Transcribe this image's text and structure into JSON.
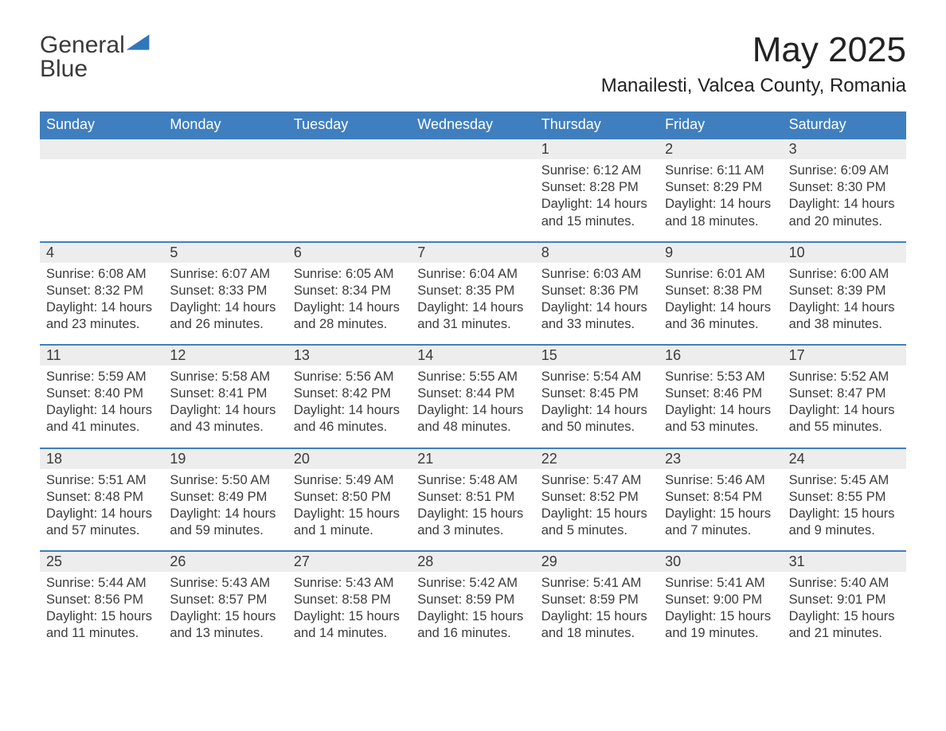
{
  "brand": {
    "name_part1": "General",
    "name_part2": "Blue",
    "text_color": "#3a3a3a",
    "accent_color": "#2f77bb"
  },
  "header": {
    "month_title": "May 2025",
    "location": "Manailesti, Valcea County, Romania",
    "title_fontsize": 44,
    "location_fontsize": 24
  },
  "styling": {
    "background_color": "#ffffff",
    "header_bar_color": "#3f7fbf",
    "header_bar_text_color": "#ffffff",
    "daynum_band_color": "#ededed",
    "week_divider_color": "#3f7fbf",
    "body_text_color": "#3c3c3c",
    "weekday_fontsize": 18,
    "daynum_fontsize": 18,
    "body_fontsize": 16.5,
    "columns": 7
  },
  "weekdays": [
    "Sunday",
    "Monday",
    "Tuesday",
    "Wednesday",
    "Thursday",
    "Friday",
    "Saturday"
  ],
  "weeks": [
    [
      {
        "day": "",
        "sunrise": "",
        "sunset": "",
        "daylight": ""
      },
      {
        "day": "",
        "sunrise": "",
        "sunset": "",
        "daylight": ""
      },
      {
        "day": "",
        "sunrise": "",
        "sunset": "",
        "daylight": ""
      },
      {
        "day": "",
        "sunrise": "",
        "sunset": "",
        "daylight": ""
      },
      {
        "day": "1",
        "sunrise": "Sunrise: 6:12 AM",
        "sunset": "Sunset: 8:28 PM",
        "daylight": "Daylight: 14 hours and 15 minutes."
      },
      {
        "day": "2",
        "sunrise": "Sunrise: 6:11 AM",
        "sunset": "Sunset: 8:29 PM",
        "daylight": "Daylight: 14 hours and 18 minutes."
      },
      {
        "day": "3",
        "sunrise": "Sunrise: 6:09 AM",
        "sunset": "Sunset: 8:30 PM",
        "daylight": "Daylight: 14 hours and 20 minutes."
      }
    ],
    [
      {
        "day": "4",
        "sunrise": "Sunrise: 6:08 AM",
        "sunset": "Sunset: 8:32 PM",
        "daylight": "Daylight: 14 hours and 23 minutes."
      },
      {
        "day": "5",
        "sunrise": "Sunrise: 6:07 AM",
        "sunset": "Sunset: 8:33 PM",
        "daylight": "Daylight: 14 hours and 26 minutes."
      },
      {
        "day": "6",
        "sunrise": "Sunrise: 6:05 AM",
        "sunset": "Sunset: 8:34 PM",
        "daylight": "Daylight: 14 hours and 28 minutes."
      },
      {
        "day": "7",
        "sunrise": "Sunrise: 6:04 AM",
        "sunset": "Sunset: 8:35 PM",
        "daylight": "Daylight: 14 hours and 31 minutes."
      },
      {
        "day": "8",
        "sunrise": "Sunrise: 6:03 AM",
        "sunset": "Sunset: 8:36 PM",
        "daylight": "Daylight: 14 hours and 33 minutes."
      },
      {
        "day": "9",
        "sunrise": "Sunrise: 6:01 AM",
        "sunset": "Sunset: 8:38 PM",
        "daylight": "Daylight: 14 hours and 36 minutes."
      },
      {
        "day": "10",
        "sunrise": "Sunrise: 6:00 AM",
        "sunset": "Sunset: 8:39 PM",
        "daylight": "Daylight: 14 hours and 38 minutes."
      }
    ],
    [
      {
        "day": "11",
        "sunrise": "Sunrise: 5:59 AM",
        "sunset": "Sunset: 8:40 PM",
        "daylight": "Daylight: 14 hours and 41 minutes."
      },
      {
        "day": "12",
        "sunrise": "Sunrise: 5:58 AM",
        "sunset": "Sunset: 8:41 PM",
        "daylight": "Daylight: 14 hours and 43 minutes."
      },
      {
        "day": "13",
        "sunrise": "Sunrise: 5:56 AM",
        "sunset": "Sunset: 8:42 PM",
        "daylight": "Daylight: 14 hours and 46 minutes."
      },
      {
        "day": "14",
        "sunrise": "Sunrise: 5:55 AM",
        "sunset": "Sunset: 8:44 PM",
        "daylight": "Daylight: 14 hours and 48 minutes."
      },
      {
        "day": "15",
        "sunrise": "Sunrise: 5:54 AM",
        "sunset": "Sunset: 8:45 PM",
        "daylight": "Daylight: 14 hours and 50 minutes."
      },
      {
        "day": "16",
        "sunrise": "Sunrise: 5:53 AM",
        "sunset": "Sunset: 8:46 PM",
        "daylight": "Daylight: 14 hours and 53 minutes."
      },
      {
        "day": "17",
        "sunrise": "Sunrise: 5:52 AM",
        "sunset": "Sunset: 8:47 PM",
        "daylight": "Daylight: 14 hours and 55 minutes."
      }
    ],
    [
      {
        "day": "18",
        "sunrise": "Sunrise: 5:51 AM",
        "sunset": "Sunset: 8:48 PM",
        "daylight": "Daylight: 14 hours and 57 minutes."
      },
      {
        "day": "19",
        "sunrise": "Sunrise: 5:50 AM",
        "sunset": "Sunset: 8:49 PM",
        "daylight": "Daylight: 14 hours and 59 minutes."
      },
      {
        "day": "20",
        "sunrise": "Sunrise: 5:49 AM",
        "sunset": "Sunset: 8:50 PM",
        "daylight": "Daylight: 15 hours and 1 minute."
      },
      {
        "day": "21",
        "sunrise": "Sunrise: 5:48 AM",
        "sunset": "Sunset: 8:51 PM",
        "daylight": "Daylight: 15 hours and 3 minutes."
      },
      {
        "day": "22",
        "sunrise": "Sunrise: 5:47 AM",
        "sunset": "Sunset: 8:52 PM",
        "daylight": "Daylight: 15 hours and 5 minutes."
      },
      {
        "day": "23",
        "sunrise": "Sunrise: 5:46 AM",
        "sunset": "Sunset: 8:54 PM",
        "daylight": "Daylight: 15 hours and 7 minutes."
      },
      {
        "day": "24",
        "sunrise": "Sunrise: 5:45 AM",
        "sunset": "Sunset: 8:55 PM",
        "daylight": "Daylight: 15 hours and 9 minutes."
      }
    ],
    [
      {
        "day": "25",
        "sunrise": "Sunrise: 5:44 AM",
        "sunset": "Sunset: 8:56 PM",
        "daylight": "Daylight: 15 hours and 11 minutes."
      },
      {
        "day": "26",
        "sunrise": "Sunrise: 5:43 AM",
        "sunset": "Sunset: 8:57 PM",
        "daylight": "Daylight: 15 hours and 13 minutes."
      },
      {
        "day": "27",
        "sunrise": "Sunrise: 5:43 AM",
        "sunset": "Sunset: 8:58 PM",
        "daylight": "Daylight: 15 hours and 14 minutes."
      },
      {
        "day": "28",
        "sunrise": "Sunrise: 5:42 AM",
        "sunset": "Sunset: 8:59 PM",
        "daylight": "Daylight: 15 hours and 16 minutes."
      },
      {
        "day": "29",
        "sunrise": "Sunrise: 5:41 AM",
        "sunset": "Sunset: 8:59 PM",
        "daylight": "Daylight: 15 hours and 18 minutes."
      },
      {
        "day": "30",
        "sunrise": "Sunrise: 5:41 AM",
        "sunset": "Sunset: 9:00 PM",
        "daylight": "Daylight: 15 hours and 19 minutes."
      },
      {
        "day": "31",
        "sunrise": "Sunrise: 5:40 AM",
        "sunset": "Sunset: 9:01 PM",
        "daylight": "Daylight: 15 hours and 21 minutes."
      }
    ]
  ]
}
